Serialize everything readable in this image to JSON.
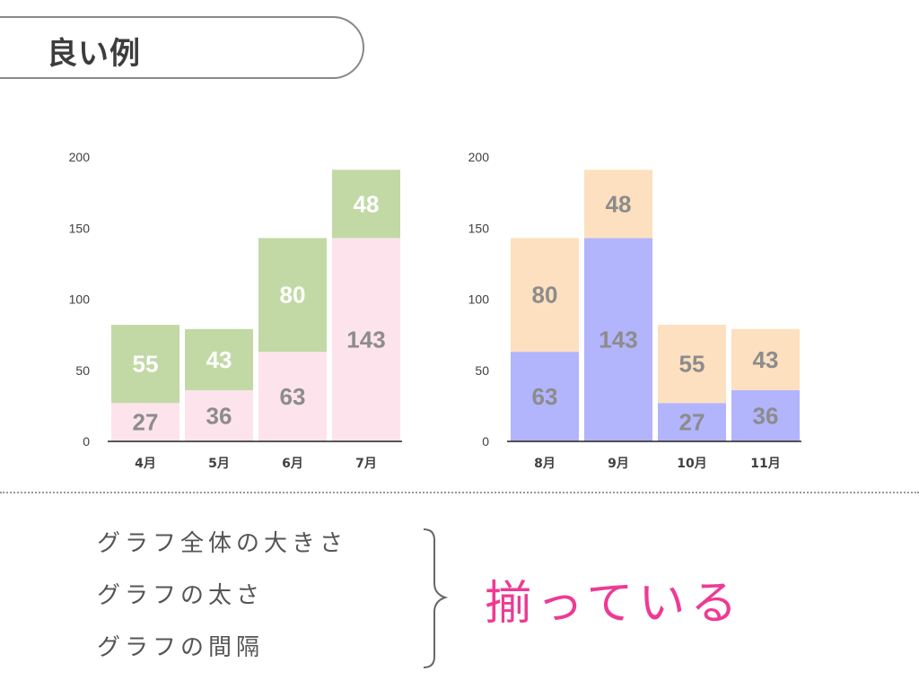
{
  "header": {
    "title": "良い例"
  },
  "chart_data": [
    {
      "type": "bar",
      "stacked": true,
      "categories": [
        "4月",
        "5月",
        "6月",
        "7月"
      ],
      "series": [
        {
          "values": [
            27,
            36,
            63,
            143
          ],
          "color": "#fde3ec",
          "label_color": "#8c8c8c"
        },
        {
          "values": [
            55,
            43,
            80,
            48
          ],
          "color": "#c2d9a6",
          "label_color": "#ffffff"
        }
      ],
      "yticks": [
        0,
        50,
        100,
        150,
        200
      ],
      "ylim": [
        0,
        200
      ]
    },
    {
      "type": "bar",
      "stacked": true,
      "categories": [
        "8月",
        "9月",
        "10月",
        "11月"
      ],
      "series": [
        {
          "values": [
            63,
            143,
            27,
            36
          ],
          "color": "#b2b4fc",
          "label_color": "#8c8c8c"
        },
        {
          "values": [
            80,
            48,
            55,
            43
          ],
          "color": "#fde0bf",
          "label_color": "#8c8c8c"
        }
      ],
      "yticks": [
        0,
        50,
        100,
        150,
        200
      ],
      "ylim": [
        0,
        200
      ]
    }
  ],
  "notes": {
    "items": [
      "グラフ全体の大きさ",
      "グラフの太さ",
      "グラフの間隔"
    ],
    "result": "揃っている"
  },
  "colors": {
    "accent": "#ee3a94",
    "border": "#888888"
  }
}
